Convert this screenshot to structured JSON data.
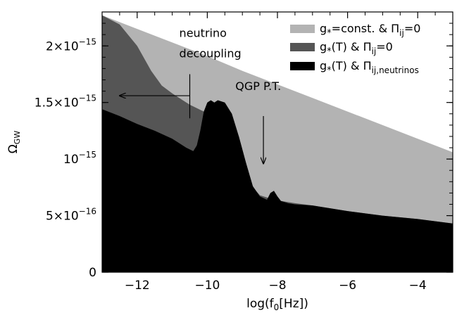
{
  "chart_data": {
    "type": "area",
    "xlabel": "log(f0[Hz])",
    "xlabel_main": "log(f",
    "xlabel_sub": "0",
    "xlabel_tail": "[Hz])",
    "ylabel_main": "Ω",
    "ylabel_sub": "GW",
    "xlim": [
      -13,
      -3
    ],
    "ylim": [
      0,
      2.3e-15
    ],
    "x_ticks": [
      {
        "value": -12,
        "label": "−12"
      },
      {
        "value": -10,
        "label": "−10"
      },
      {
        "value": -8,
        "label": "−8"
      },
      {
        "value": -6,
        "label": "−6"
      },
      {
        "value": -4,
        "label": "−4"
      }
    ],
    "y_ticks": [
      {
        "value": 0,
        "mant": "0",
        "exp": ""
      },
      {
        "value": 5e-16,
        "mant": "5×10",
        "exp": "−16"
      },
      {
        "value": 1e-15,
        "mant": "10",
        "exp": "−15"
      },
      {
        "value": 1.5e-15,
        "mant": "1.5×10",
        "exp": "−15"
      },
      {
        "value": 2e-15,
        "mant": "2×10",
        "exp": "−15"
      }
    ],
    "legend_position": "top-right",
    "series": [
      {
        "legend_main": "g",
        "legend_sub": "*",
        "legend_tail": "=const. & Π",
        "legend_sub2": "ij",
        "legend_tail2": "=0",
        "color": "#b3b3b3",
        "x": [
          -13,
          -12,
          -11,
          -10,
          -9,
          -8,
          -7,
          -6,
          -5,
          -4,
          -3
        ],
        "y": [
          2.27e-15,
          2.15e-15,
          2.03e-15,
          1.91e-15,
          1.78e-15,
          1.66e-15,
          1.54e-15,
          1.42e-15,
          1.3e-15,
          1.18e-15,
          1.06e-15
        ]
      },
      {
        "legend_main": "g",
        "legend_sub": "*",
        "legend_tail": "(T) & Π",
        "legend_sub2": "ij",
        "legend_tail2": "=0",
        "color": "#555555",
        "x": [
          -13,
          -12.5,
          -12,
          -11.6,
          -11.3,
          -11,
          -10.7,
          -10.5,
          -10.3,
          -10.1,
          -10,
          -9.9,
          -9.7,
          -9.5,
          -9.3,
          -9.1,
          -8.9,
          -8.7,
          -8.5,
          -8.3,
          -8.1,
          -7.9,
          -7.7,
          -7.5,
          -7,
          -6,
          -5,
          -4,
          -3
        ],
        "y": [
          2.27e-15,
          2.19e-15,
          2e-15,
          1.78e-15,
          1.65e-15,
          1.58e-15,
          1.52e-15,
          1.48e-15,
          1.45e-15,
          1.42e-15,
          1.41e-15,
          1.4e-15,
          1.38e-15,
          1.36e-15,
          1.33e-15,
          1.2e-15,
          9.7e-16,
          7.5e-16,
          6.8e-16,
          6.6e-16,
          6.4e-16,
          6.3e-16,
          6.2e-16,
          6.1e-16,
          5.9e-16,
          5.4e-16,
          5e-16,
          4.7e-16,
          4.3e-16
        ]
      },
      {
        "legend_main": "g",
        "legend_sub": "*",
        "legend_tail": "(T) & Π",
        "legend_sub2": "ij,neutrinos",
        "legend_tail2": "",
        "color": "#000000",
        "x": [
          -13,
          -12.5,
          -12,
          -11.5,
          -11,
          -10.8,
          -10.6,
          -10.4,
          -10.3,
          -10.2,
          -10.1,
          -10.0,
          -9.9,
          -9.8,
          -9.7,
          -9.6,
          -9.5,
          -9.3,
          -9.1,
          -8.9,
          -8.7,
          -8.5,
          -8.3,
          -8.2,
          -8.1,
          -8.0,
          -7.9,
          -7.8,
          -7.7,
          -7.5,
          -7,
          -6,
          -5,
          -4,
          -3
        ],
        "y": [
          1.44e-15,
          1.38e-15,
          1.31e-15,
          1.25e-15,
          1.18e-15,
          1.14e-15,
          1.1e-15,
          1.07e-15,
          1.12e-15,
          1.25e-15,
          1.42e-15,
          1.5e-15,
          1.52e-15,
          1.5e-15,
          1.52e-15,
          1.51e-15,
          1.5e-15,
          1.4e-15,
          1.2e-15,
          9.7e-16,
          7.6e-16,
          6.7e-16,
          6.4e-16,
          7e-16,
          7.2e-16,
          6.7e-16,
          6.3e-16,
          6.2e-16,
          6.1e-16,
          6e-16,
          5.9e-16,
          5.4e-16,
          5e-16,
          4.7e-16,
          4.3e-16
        ]
      }
    ],
    "annotations": {
      "neutrino_line1": "neutrino",
      "neutrino_line2": "decoupling",
      "neutrino_arrow": {
        "x_from": -10.5,
        "x_to": -12.5,
        "y": 1.56e-15
      },
      "neutrino_tick": {
        "x": -10.5,
        "y_low": 1.36e-15,
        "y_high": 1.75e-15
      },
      "qgp": "QGP P.T.",
      "qgp_arrow": {
        "x": -8.4,
        "y_from": 1.38e-15,
        "y_to": 9.6e-16
      }
    }
  }
}
